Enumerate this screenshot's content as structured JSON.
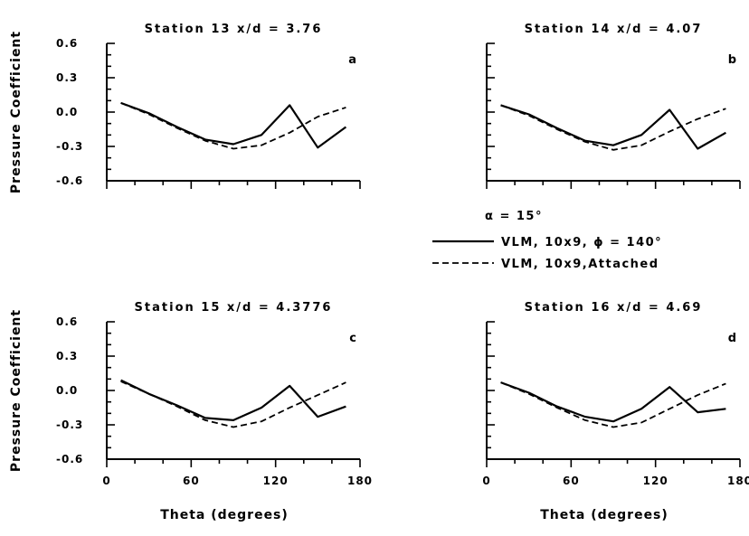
{
  "chart_data": [
    {
      "type": "line",
      "title": "Station 13 x/d = 3.76",
      "panel_label": "a",
      "ylabel": "Pressure Coefficient",
      "xlabel": "",
      "xlim": [
        0,
        180
      ],
      "ylim": [
        -0.6,
        0.6
      ],
      "xticks": [],
      "yticks": [
        "0.6",
        "0.3",
        "0.0",
        "-0.3",
        "-0.6"
      ],
      "x": [
        10,
        30,
        50,
        70,
        90,
        110,
        130,
        150,
        170
      ],
      "series": [
        {
          "style": "solid",
          "values": [
            0.08,
            -0.01,
            -0.13,
            -0.24,
            -0.28,
            -0.2,
            0.06,
            -0.31,
            -0.13
          ]
        },
        {
          "style": "dashed",
          "values": [
            0.08,
            -0.02,
            -0.14,
            -0.25,
            -0.32,
            -0.29,
            -0.18,
            -0.04,
            0.04
          ]
        }
      ]
    },
    {
      "type": "line",
      "title": "Station 14 x/d = 4.07",
      "panel_label": "b",
      "ylabel": "",
      "xlabel": "",
      "xlim": [
        0,
        180
      ],
      "ylim": [
        -0.6,
        0.6
      ],
      "xticks": [],
      "yticks": [],
      "x": [
        10,
        30,
        50,
        70,
        90,
        110,
        130,
        150,
        170
      ],
      "series": [
        {
          "style": "solid",
          "values": [
            0.06,
            -0.02,
            -0.14,
            -0.25,
            -0.29,
            -0.2,
            0.02,
            -0.32,
            -0.18
          ]
        },
        {
          "style": "dashed",
          "values": [
            0.06,
            -0.03,
            -0.15,
            -0.26,
            -0.33,
            -0.29,
            -0.17,
            -0.06,
            0.03
          ]
        }
      ]
    },
    {
      "type": "line",
      "title": "Station 15 x/d = 4.3776",
      "panel_label": "c",
      "ylabel": "Pressure Coefficient",
      "xlabel": "Theta (degrees)",
      "xlim": [
        0,
        180
      ],
      "ylim": [
        -0.6,
        0.6
      ],
      "xticks": [
        "0",
        "60",
        "120",
        "180"
      ],
      "yticks": [
        "0.6",
        "0.3",
        "0.0",
        "-0.3",
        "-0.6"
      ],
      "x": [
        10,
        30,
        50,
        70,
        90,
        110,
        130,
        150,
        170
      ],
      "series": [
        {
          "style": "solid",
          "values": [
            0.09,
            -0.03,
            -0.13,
            -0.24,
            -0.26,
            -0.15,
            0.04,
            -0.23,
            -0.14
          ]
        },
        {
          "style": "dashed",
          "values": [
            0.08,
            -0.03,
            -0.14,
            -0.26,
            -0.32,
            -0.27,
            -0.15,
            -0.04,
            0.07
          ]
        }
      ]
    },
    {
      "type": "line",
      "title": "Station 16 x/d = 4.69",
      "panel_label": "d",
      "ylabel": "",
      "xlabel": "Theta (degrees)",
      "xlim": [
        0,
        180
      ],
      "ylim": [
        -0.6,
        0.6
      ],
      "xticks": [
        "0",
        "60",
        "120",
        "180"
      ],
      "yticks": [],
      "x": [
        10,
        30,
        50,
        70,
        90,
        110,
        130,
        150,
        170
      ],
      "series": [
        {
          "style": "solid",
          "values": [
            0.07,
            -0.02,
            -0.14,
            -0.23,
            -0.27,
            -0.16,
            0.03,
            -0.19,
            -0.16
          ]
        },
        {
          "style": "dashed",
          "values": [
            0.07,
            -0.03,
            -0.15,
            -0.26,
            -0.32,
            -0.28,
            -0.16,
            -0.04,
            0.06
          ]
        }
      ]
    }
  ],
  "legend": {
    "condition": "α = 15°",
    "entries": [
      {
        "style": "solid",
        "label": "VLM, 10x9, ϕ = 140°"
      },
      {
        "style": "dashed",
        "label": "VLM, 10x9,Attached"
      }
    ]
  }
}
